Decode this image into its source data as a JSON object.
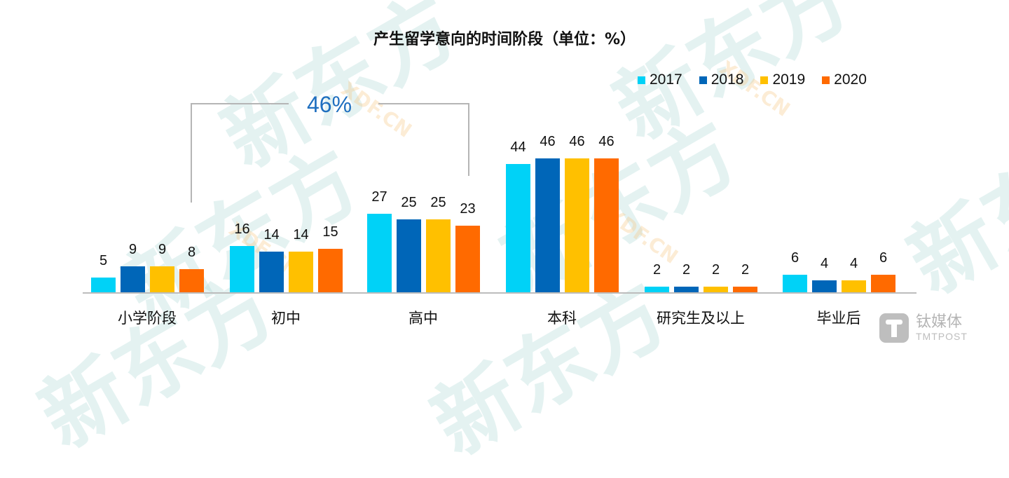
{
  "title": "产生留学意向的时间阶段（单位：%）",
  "legend": [
    {
      "label": "2017",
      "color": "#00d2f7"
    },
    {
      "label": "2018",
      "color": "#0066b8"
    },
    {
      "label": "2019",
      "color": "#ffc000"
    },
    {
      "label": "2020",
      "color": "#ff6a00"
    }
  ],
  "annotation": {
    "label": "46%"
  },
  "watermark": {
    "text": "新东方",
    "sub": "XDF.CN"
  },
  "logo": {
    "name": "钛媒体",
    "sub": "TMTPOST"
  },
  "chart_data": {
    "type": "bar",
    "title": "产生留学意向的时间阶段（单位：%）",
    "xlabel": "",
    "ylabel": "",
    "categories": [
      "小学阶段",
      "初中",
      "高中",
      "本科",
      "研究生及以上",
      "毕业后"
    ],
    "series": [
      {
        "name": "2017",
        "values": [
          5,
          16,
          27,
          44,
          2,
          6
        ]
      },
      {
        "name": "2018",
        "values": [
          9,
          14,
          25,
          46,
          2,
          4
        ]
      },
      {
        "name": "2019",
        "values": [
          9,
          14,
          25,
          46,
          2,
          4
        ]
      },
      {
        "name": "2020",
        "values": [
          8,
          15,
          23,
          46,
          2,
          6
        ]
      }
    ],
    "annotations": [
      {
        "text": "46%",
        "spans": [
          "小学阶段",
          "初中",
          "高中"
        ],
        "series": "2020"
      }
    ],
    "legend_position": "top-right",
    "grid": false,
    "ylim": [
      0,
      50
    ]
  }
}
